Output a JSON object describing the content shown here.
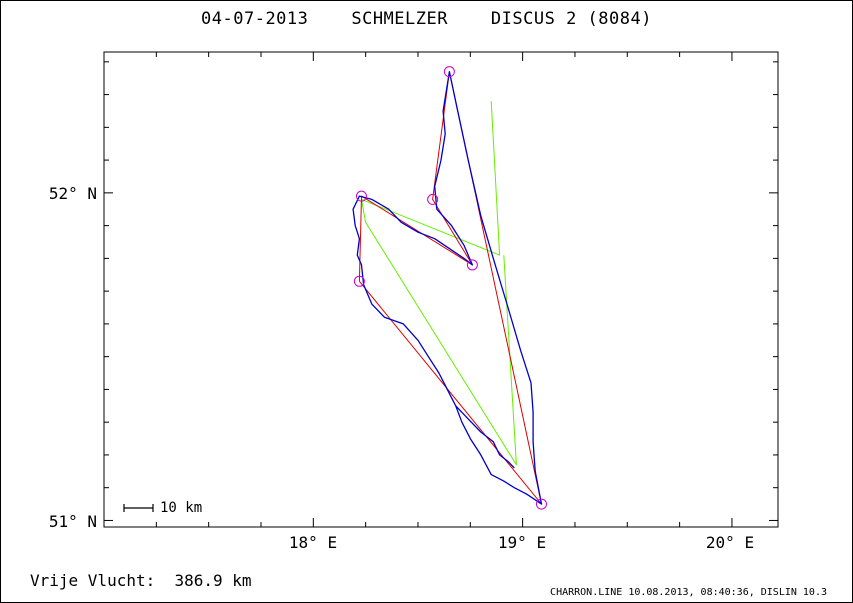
{
  "header": {
    "date": "04-07-2013",
    "pilot": "SCHMELZER",
    "glider": "DISCUS 2 (8084)"
  },
  "axes": {
    "y_ticks": [
      {
        "value": 51,
        "label": "51° N"
      },
      {
        "value": 52,
        "label": "52° N"
      }
    ],
    "x_ticks": [
      {
        "value": 18,
        "label": "18° E"
      },
      {
        "value": 19,
        "label": "19° E"
      },
      {
        "value": 20,
        "label": "20° E"
      }
    ],
    "lon_range": [
      17.0,
      20.22
    ],
    "lat_range": [
      50.98,
      52.43
    ]
  },
  "scale_bar": {
    "label": "10 km"
  },
  "summary": {
    "distance_label": "Vrije Vlucht:",
    "distance_value": "386.9 km"
  },
  "footer": {
    "text": "CHARRON.LINE 10.08.2013, 08:40:36, DISLIN 10.3"
  },
  "colors": {
    "track": "#0000cc",
    "task": "#dd0000",
    "declared": "#66ee00",
    "turnpoint": "#cc00cc"
  },
  "turnpoints": [
    {
      "lon": 18.65,
      "lat": 52.37
    },
    {
      "lon": 18.57,
      "lat": 51.98
    },
    {
      "lon": 18.76,
      "lat": 51.78
    },
    {
      "lon": 18.23,
      "lat": 51.99
    },
    {
      "lon": 18.22,
      "lat": 51.73
    },
    {
      "lon": 19.09,
      "lat": 51.05
    }
  ],
  "task_route": [
    {
      "lon": 18.22,
      "lat": 51.73
    },
    {
      "lon": 19.09,
      "lat": 51.05
    },
    {
      "lon": 18.65,
      "lat": 52.37
    },
    {
      "lon": 18.57,
      "lat": 51.98
    },
    {
      "lon": 18.76,
      "lat": 51.78
    },
    {
      "lon": 18.23,
      "lat": 51.99
    },
    {
      "lon": 18.22,
      "lat": 51.73
    }
  ],
  "declared_route": [
    {
      "lon": 18.85,
      "lat": 52.28
    },
    {
      "lon": 18.89,
      "lat": 51.81
    },
    {
      "lon": 18.23,
      "lat": 51.98
    },
    {
      "lon": 18.25,
      "lat": 51.91
    },
    {
      "lon": 18.97,
      "lat": 51.17
    },
    {
      "lon": 18.91,
      "lat": 51.81
    }
  ],
  "track": [
    {
      "lon": 18.96,
      "lat": 51.16
    },
    {
      "lon": 18.93,
      "lat": 51.18
    },
    {
      "lon": 18.89,
      "lat": 51.2
    },
    {
      "lon": 18.86,
      "lat": 51.24
    },
    {
      "lon": 18.8,
      "lat": 51.27
    },
    {
      "lon": 18.74,
      "lat": 51.31
    },
    {
      "lon": 18.68,
      "lat": 51.35
    },
    {
      "lon": 18.64,
      "lat": 51.4
    },
    {
      "lon": 18.6,
      "lat": 51.45
    },
    {
      "lon": 18.55,
      "lat": 51.5
    },
    {
      "lon": 18.5,
      "lat": 51.55
    },
    {
      "lon": 18.43,
      "lat": 51.6
    },
    {
      "lon": 18.34,
      "lat": 51.62
    },
    {
      "lon": 18.28,
      "lat": 51.66
    },
    {
      "lon": 18.24,
      "lat": 51.72
    },
    {
      "lon": 18.23,
      "lat": 51.78
    },
    {
      "lon": 18.21,
      "lat": 51.81
    },
    {
      "lon": 18.22,
      "lat": 51.86
    },
    {
      "lon": 18.2,
      "lat": 51.9
    },
    {
      "lon": 18.19,
      "lat": 51.95
    },
    {
      "lon": 18.22,
      "lat": 51.99
    },
    {
      "lon": 18.28,
      "lat": 51.98
    },
    {
      "lon": 18.36,
      "lat": 51.95
    },
    {
      "lon": 18.42,
      "lat": 51.91
    },
    {
      "lon": 18.5,
      "lat": 51.88
    },
    {
      "lon": 18.58,
      "lat": 51.86
    },
    {
      "lon": 18.65,
      "lat": 51.83
    },
    {
      "lon": 18.72,
      "lat": 51.8
    },
    {
      "lon": 18.76,
      "lat": 51.78
    },
    {
      "lon": 18.72,
      "lat": 51.84
    },
    {
      "lon": 18.66,
      "lat": 51.9
    },
    {
      "lon": 18.59,
      "lat": 51.95
    },
    {
      "lon": 18.58,
      "lat": 52.02
    },
    {
      "lon": 18.61,
      "lat": 52.1
    },
    {
      "lon": 18.63,
      "lat": 52.18
    },
    {
      "lon": 18.62,
      "lat": 52.25
    },
    {
      "lon": 18.65,
      "lat": 52.37
    },
    {
      "lon": 18.69,
      "lat": 52.25
    },
    {
      "lon": 18.74,
      "lat": 52.1
    },
    {
      "lon": 18.8,
      "lat": 51.93
    },
    {
      "lon": 18.86,
      "lat": 51.8
    },
    {
      "lon": 18.93,
      "lat": 51.65
    },
    {
      "lon": 18.99,
      "lat": 51.52
    },
    {
      "lon": 19.04,
      "lat": 51.42
    },
    {
      "lon": 19.05,
      "lat": 51.33
    },
    {
      "lon": 19.05,
      "lat": 51.24
    },
    {
      "lon": 19.06,
      "lat": 51.15
    },
    {
      "lon": 19.09,
      "lat": 51.05
    },
    {
      "lon": 19.02,
      "lat": 51.08
    },
    {
      "lon": 18.96,
      "lat": 51.1
    },
    {
      "lon": 18.91,
      "lat": 51.12
    },
    {
      "lon": 18.85,
      "lat": 51.14
    },
    {
      "lon": 18.8,
      "lat": 51.2
    },
    {
      "lon": 18.75,
      "lat": 51.25
    },
    {
      "lon": 18.71,
      "lat": 51.3
    },
    {
      "lon": 18.68,
      "lat": 51.35
    }
  ]
}
